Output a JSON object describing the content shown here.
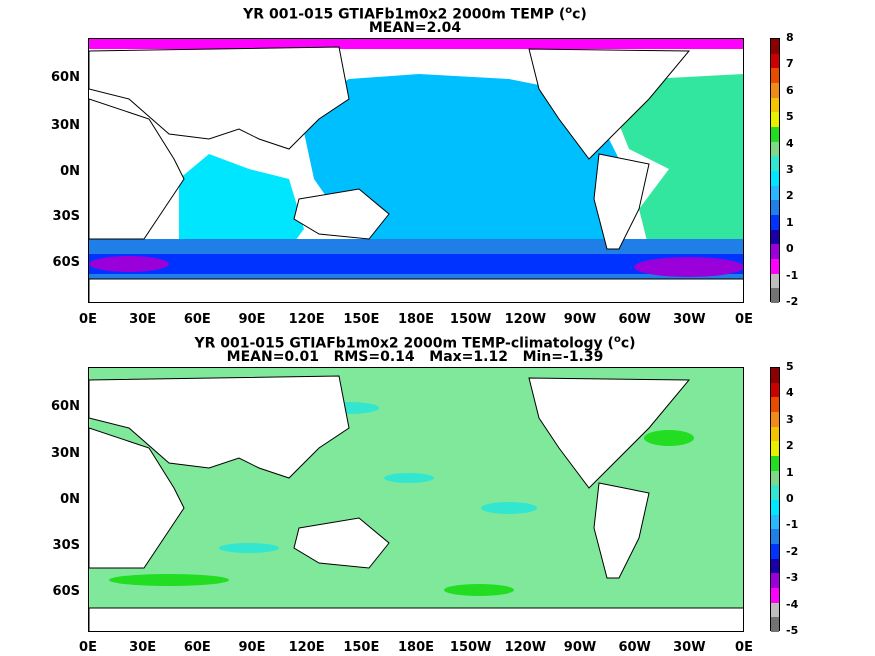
{
  "panel1": {
    "title_line1": "YR 001-015 GTIAFb1m0x2 2000m TEMP (",
    "title_sup": "o",
    "title_unit": "c)",
    "title_line2": "MEAN=2.04",
    "colorbar": {
      "labels": [
        "8",
        "7",
        "6",
        "5",
        "4",
        "3",
        "2",
        "1",
        "0",
        "-1",
        "-2"
      ],
      "colors": [
        "#8b0000",
        "#cc0000",
        "#e84a00",
        "#f08a1a",
        "#f5c400",
        "#e8f000",
        "#22dd22",
        "#7fd88a",
        "#33e6d0",
        "#00e6ff",
        "#29b7ff",
        "#1f7fe6",
        "#0033ff",
        "#1a00a8",
        "#9a00d9",
        "#ff00ff",
        "#bdbdbd",
        "#737373"
      ]
    }
  },
  "panel2": {
    "title_line1": "YR 001-015 GTIAFb1m0x2 2000m TEMP-climatology (",
    "title_sup": "o",
    "title_unit": "c)",
    "title_line2": "MEAN=0.01   RMS=0.14   Max=1.12   Min=-1.39",
    "colorbar": {
      "labels": [
        "5",
        "4",
        "3",
        "2",
        "1",
        "0",
        "-1",
        "-2",
        "-3",
        "-4",
        "-5"
      ],
      "colors": [
        "#8b0000",
        "#cc0000",
        "#e84a00",
        "#f08a1a",
        "#f5c400",
        "#e8f000",
        "#22dd22",
        "#7fd88a",
        "#33e6d0",
        "#00e6ff",
        "#29b7ff",
        "#1f7fe6",
        "#0033ff",
        "#1a00a8",
        "#9a00d9",
        "#ff00ff",
        "#bdbdbd",
        "#737373"
      ]
    }
  },
  "axes": {
    "lat_labels": [
      "60N",
      "30N",
      "0N",
      "30S",
      "60S"
    ],
    "lon_labels": [
      "0E",
      "30E",
      "60E",
      "90E",
      "120E",
      "150E",
      "180E",
      "150W",
      "120W",
      "90W",
      "60W",
      "30W",
      "0E"
    ]
  },
  "colors": {
    "ocean_mean_top": "#00bfff",
    "indian_top": "#00e6ff",
    "southern_band": "#0033ff",
    "southern_deep": "#9a00d9",
    "arctic": "#ff00ff",
    "atlantic_top": "#33e6a0",
    "diff_ocean": "#7fe89a",
    "diff_bright": "#22dd22",
    "land": "#ffffff"
  }
}
